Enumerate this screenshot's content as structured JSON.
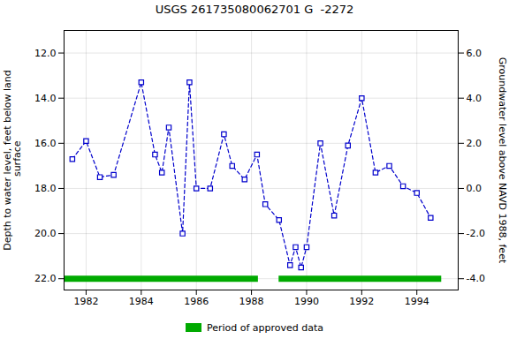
{
  "chart_data": {
    "type": "line",
    "title": "USGS 261735080062701 G  -2272",
    "ylabel": "Depth to water level, feet below land\n surface",
    "y2label": "Groundwater level above NAVD 1988, feet",
    "x": [
      1981.5,
      1982.0,
      1982.5,
      1983.0,
      1984.0,
      1984.5,
      1984.75,
      1985.0,
      1985.5,
      1985.75,
      1986.0,
      1986.5,
      1987.0,
      1987.3,
      1987.75,
      1988.2,
      1988.5,
      1989.0,
      1989.4,
      1989.6,
      1989.8,
      1990.0,
      1990.5,
      1991.0,
      1991.5,
      1992.0,
      1992.5,
      1993.0,
      1993.5,
      1994.0,
      1994.5
    ],
    "series": [
      {
        "values": [
          16.7,
          15.9,
          17.5,
          17.4,
          13.3,
          16.5,
          17.3,
          15.3,
          20.0,
          13.3,
          18.0,
          18.0,
          15.6,
          17.0,
          17.6,
          16.5,
          18.7,
          19.4,
          21.4,
          20.6,
          21.5,
          20.6,
          16.0,
          19.2,
          16.1,
          14.0,
          17.3,
          17.0,
          17.9,
          18.2,
          19.3
        ],
        "color": "#0000CC",
        "marker": "square",
        "line_style": "dashed"
      },
      {
        "name": "Period of approved data",
        "type": "bar",
        "color": "#00AA00",
        "y": 22.0,
        "segments": [
          [
            1981.2,
            1988.25
          ],
          [
            1989.0,
            1994.9
          ]
        ]
      }
    ],
    "xlim": [
      1981.2,
      1995.5
    ],
    "xticks": [
      1982,
      1984,
      1986,
      1988,
      1990,
      1992,
      1994
    ],
    "ylim": [
      22.5,
      11.0
    ],
    "yticks": [
      {
        "value": 12.0,
        "label": "12.0"
      },
      {
        "value": 14.0,
        "label": "14.0"
      },
      {
        "value": 16.0,
        "label": "16.0"
      },
      {
        "value": 18.0,
        "label": "18.0"
      },
      {
        "value": 20.0,
        "label": "20.0"
      },
      {
        "value": 22.0,
        "label": "22.0"
      }
    ],
    "y2lim": [
      -4.5,
      7.0
    ],
    "y2ticks": [
      {
        "value": 6.0,
        "label": "6.0"
      },
      {
        "value": 4.0,
        "label": "4.0"
      },
      {
        "value": 2.0,
        "label": "2.0"
      },
      {
        "value": 0.0,
        "label": "0.0"
      },
      {
        "value": -2.0,
        "label": "-2.0"
      },
      {
        "value": -4.0,
        "label": "-4.0"
      }
    ],
    "grid": true,
    "legend": "bottom"
  }
}
